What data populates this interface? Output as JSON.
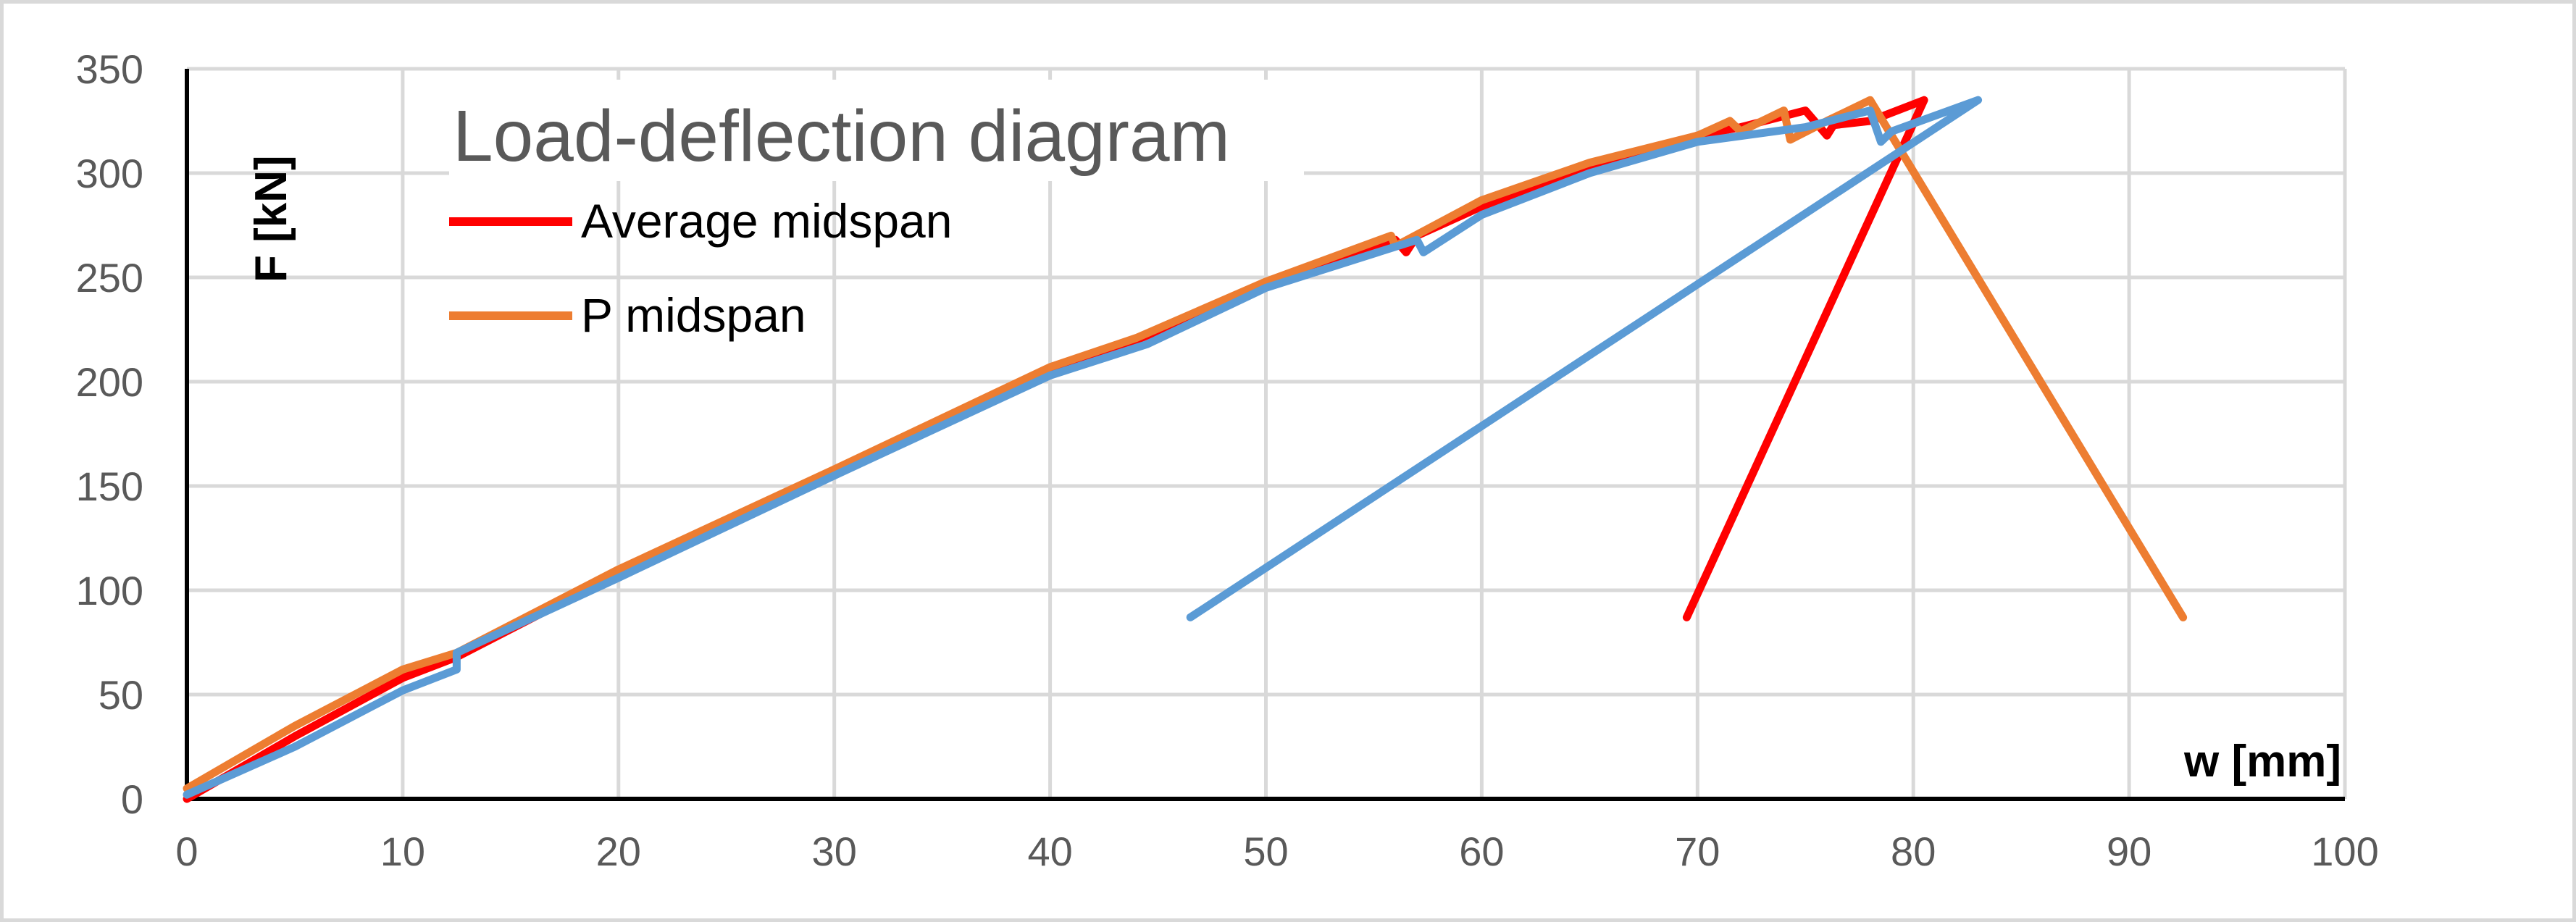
{
  "chart_data": {
    "type": "line",
    "title": "Load-deflection diagram",
    "xlabel": "w [mm]",
    "ylabel": "F [kN]",
    "xlim": [
      0,
      100
    ],
    "ylim": [
      0,
      350
    ],
    "xticks": [
      0,
      10,
      20,
      30,
      40,
      50,
      60,
      70,
      80,
      90,
      100
    ],
    "yticks": [
      0,
      50,
      100,
      150,
      200,
      250,
      300,
      350
    ],
    "grid": true,
    "legend_position": "top-left",
    "series": [
      {
        "name": "Average midspan",
        "color": "#ff0000",
        "x": [
          0,
          5,
          10,
          12.5,
          20,
          30,
          40,
          44,
          50,
          56,
          56.5,
          57,
          60,
          65,
          70,
          71,
          72,
          75,
          76,
          76.3,
          78,
          80.5,
          69.5
        ],
        "y": [
          0,
          30,
          58,
          68,
          108,
          157,
          205,
          220,
          246,
          268,
          262,
          270,
          284,
          303,
          318,
          320,
          322,
          330,
          318,
          323,
          325,
          335,
          87
        ]
      },
      {
        "name": "P midspan",
        "color": "#ed7d31",
        "x": [
          0,
          5,
          10,
          12.5,
          20,
          30,
          40,
          44,
          50,
          55.8,
          56,
          60,
          65,
          70,
          71.5,
          72,
          74,
          74.3,
          76,
          78,
          92.5
        ],
        "y": [
          5,
          35,
          62,
          70,
          110,
          158,
          207,
          221,
          248,
          270,
          265,
          287,
          305,
          318,
          325,
          320,
          330,
          316,
          325,
          335,
          87
        ]
      },
      {
        "name": "",
        "color": "#5b9bd5",
        "x": [
          0,
          5,
          10,
          12.5,
          12.5,
          20,
          30,
          40,
          44.5,
          50,
          57,
          57.3,
          60,
          65,
          70,
          75,
          78,
          78.5,
          79,
          83,
          46.5
        ],
        "y": [
          2,
          25,
          52,
          62,
          70,
          106,
          155,
          203,
          218,
          245,
          268,
          262,
          280,
          300,
          315,
          322,
          330,
          315,
          320,
          335,
          87
        ]
      }
    ]
  }
}
